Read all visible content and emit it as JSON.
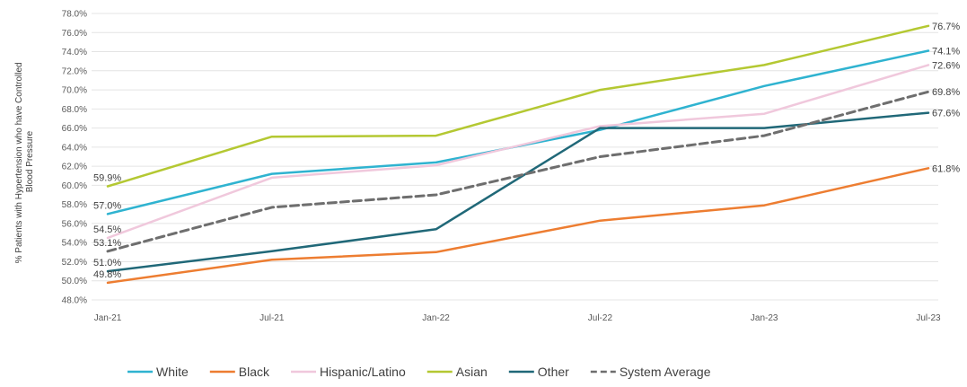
{
  "chart_data": {
    "type": "line",
    "title": "",
    "xlabel": "",
    "ylabel": "% Patients with Hypertension who have Controlled Blood Pressure",
    "ylabel_lines": [
      "% Patients with Hypertension who have Controlled",
      "Blood Pressure"
    ],
    "x": [
      "Jan-21",
      "Jul-21",
      "Jan-22",
      "Jul-22",
      "Jan-23",
      "Jul-23"
    ],
    "ylim": [
      48.0,
      78.0
    ],
    "ytick_step": 2.0,
    "yticks": [
      "48.0%",
      "50.0%",
      "52.0%",
      "54.0%",
      "56.0%",
      "58.0%",
      "60.0%",
      "62.0%",
      "64.0%",
      "66.0%",
      "68.0%",
      "70.0%",
      "72.0%",
      "74.0%",
      "76.0%",
      "78.0%"
    ],
    "grid": true,
    "legend_position": "bottom",
    "series": [
      {
        "name": "White",
        "color": "#2fb3d0",
        "dashed": false,
        "values": [
          57.0,
          61.2,
          62.4,
          65.8,
          70.4,
          74.1
        ],
        "start_label": "57.0%",
        "end_label": "74.1%"
      },
      {
        "name": "Black",
        "color": "#ed7d31",
        "dashed": false,
        "values": [
          49.8,
          52.2,
          53.0,
          56.3,
          57.9,
          61.8
        ],
        "start_label": "49.8%",
        "end_label": "61.8%"
      },
      {
        "name": "Hispanic/Latino",
        "color": "#f0c8dc",
        "dashed": false,
        "values": [
          54.5,
          60.8,
          62.1,
          66.2,
          67.5,
          72.6
        ],
        "start_label": "54.5%",
        "end_label": "72.6%"
      },
      {
        "name": "Asian",
        "color": "#b4c832",
        "dashed": false,
        "values": [
          59.9,
          65.1,
          65.2,
          70.0,
          72.6,
          76.7
        ],
        "start_label": "59.9%",
        "end_label": "76.7%"
      },
      {
        "name": "Other",
        "color": "#206878",
        "dashed": false,
        "values": [
          51.0,
          53.1,
          55.4,
          66.0,
          66.0,
          67.6
        ],
        "start_label": "51.0%",
        "end_label": "67.6%"
      },
      {
        "name": "System Average",
        "color": "#6e6e6e",
        "dashed": true,
        "values": [
          53.1,
          57.7,
          59.0,
          63.0,
          65.2,
          69.8
        ],
        "start_label": "53.1%",
        "end_label": "69.8%"
      }
    ]
  }
}
